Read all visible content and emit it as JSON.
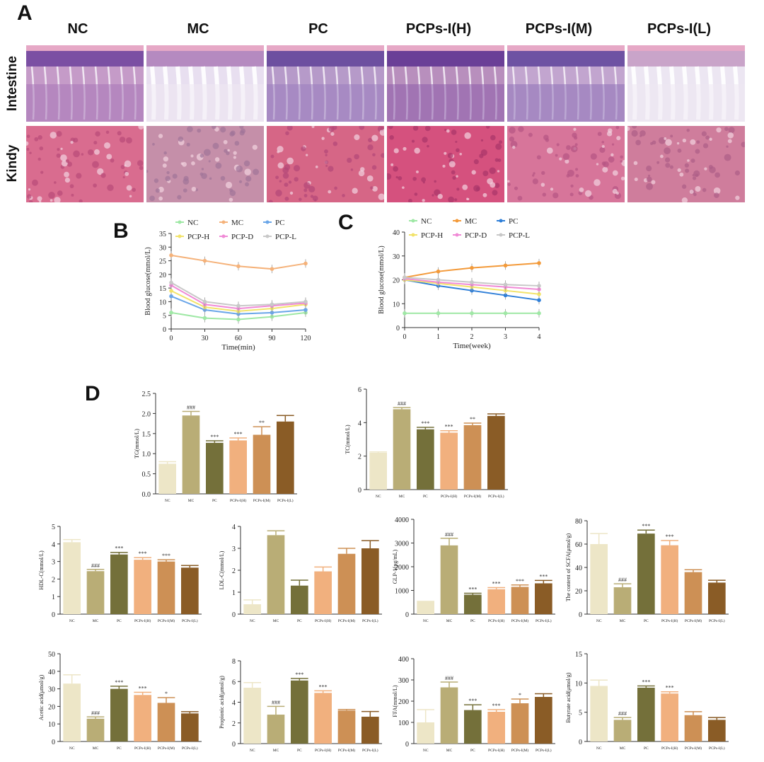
{
  "panel_letters": {
    "a": "A",
    "b": "B",
    "c": "C",
    "d": "D"
  },
  "histology": {
    "groups": [
      "NC",
      "MC",
      "PC",
      "PCPs-I(H)",
      "PCPs-I(M)",
      "PCPs-I(L)"
    ],
    "rows": [
      "Intestine",
      "Kindy"
    ]
  },
  "colors": {
    "NC": "#ede6c7",
    "MC": "#b9ad76",
    "PC": "#74703a",
    "H": "#f1b07e",
    "M": "#cd9055",
    "L": "#8a5c26",
    "lineNC": "#9fe8a5",
    "lineMC": "#f5b27a",
    "linePC": "#6aa6e8",
    "lineH": "#f2e36a",
    "lineD": "#f08ad6",
    "lineL": "#c8c8c8",
    "lineMC_C": "#f39a3a",
    "linePC_C": "#2f7fd8"
  },
  "chart_data": [
    {
      "id": "B",
      "type": "line",
      "x": [
        0,
        30,
        60,
        90,
        120
      ],
      "xlabel": "Time(min)",
      "ylabel": "Blood glucose(mmol/L)",
      "ylim": [
        0,
        35
      ],
      "yticks": [
        0,
        5,
        10,
        15,
        20,
        25,
        30,
        35
      ],
      "legend_rows": [
        [
          "NC",
          "MC",
          "PC"
        ],
        [
          "PCP-H",
          "PCP-D",
          "PCP-L"
        ]
      ],
      "series": [
        {
          "name": "NC",
          "values": [
            6,
            4,
            3.5,
            4.5,
            6
          ]
        },
        {
          "name": "MC",
          "values": [
            27,
            25,
            23,
            22,
            24
          ]
        },
        {
          "name": "PC",
          "values": [
            12,
            7,
            5.5,
            6,
            7
          ]
        },
        {
          "name": "PCP-H",
          "values": [
            14,
            8,
            6.5,
            7.5,
            9
          ]
        },
        {
          "name": "PCP-D",
          "values": [
            16,
            9,
            7.5,
            8.5,
            9.5
          ]
        },
        {
          "name": "PCP-L",
          "values": [
            17,
            10,
            8.5,
            9,
            10
          ]
        }
      ]
    },
    {
      "id": "C",
      "type": "line",
      "x": [
        0,
        1,
        2,
        3,
        4
      ],
      "xlabel": "Time(week)",
      "ylabel": "Blood glucose(mmol/L)",
      "ylim": [
        0,
        40
      ],
      "yticks": [
        0,
        10,
        20,
        30,
        40
      ],
      "legend_rows": [
        [
          "NC",
          "MC",
          "PC"
        ],
        [
          "PCP-H",
          "PCP-D",
          "PCP-L"
        ]
      ],
      "series": [
        {
          "name": "NC",
          "values": [
            6,
            6,
            6,
            6,
            6
          ]
        },
        {
          "name": "MC",
          "values": [
            21,
            23.5,
            25,
            26,
            27
          ]
        },
        {
          "name": "PC",
          "values": [
            20,
            17.5,
            15.5,
            13.5,
            11.5
          ]
        },
        {
          "name": "PCP-H",
          "values": [
            20,
            18.5,
            17,
            15.5,
            14
          ]
        },
        {
          "name": "PCP-D",
          "values": [
            20.5,
            19,
            18,
            17,
            16
          ]
        },
        {
          "name": "PCP-L",
          "values": [
            21,
            20,
            19,
            18,
            17.5
          ]
        }
      ]
    },
    {
      "id": "TG",
      "type": "bar",
      "ylabel": "TG(mmol/L)",
      "categories": [
        "NC",
        "MC",
        "PC",
        "PCPs-I(H)",
        "PCPs-I(M)",
        "PCPs-I(L)"
      ],
      "values": [
        0.75,
        1.95,
        1.27,
        1.33,
        1.47,
        1.8
      ],
      "errors": [
        0.05,
        0.1,
        0.05,
        0.06,
        0.2,
        0.15
      ],
      "marks": [
        "",
        "###",
        "***",
        "***",
        "**",
        ""
      ],
      "ylim": [
        0,
        2.5
      ],
      "yticks": [
        "0.0",
        "0.5",
        "1.0",
        "1.5",
        "2.0",
        "2.5"
      ]
    },
    {
      "id": "TC",
      "type": "bar",
      "ylabel": "TC(mmol/L)",
      "categories": [
        "NC",
        "MC",
        "PC",
        "PCPs-I(H)",
        "PCPs-I(M)",
        "PCPs-I(L)"
      ],
      "values": [
        2.2,
        4.8,
        3.6,
        3.4,
        3.85,
        4.4
      ],
      "errors": [
        0.05,
        0.1,
        0.12,
        0.12,
        0.12,
        0.12
      ],
      "marks": [
        "",
        "###",
        "***",
        "***",
        "**",
        ""
      ],
      "ylim": [
        0,
        6
      ],
      "yticks": [
        "0",
        "2",
        "4",
        "6"
      ]
    },
    {
      "id": "HDL",
      "type": "bar",
      "ylabel": "HDL-C(mmol/L)",
      "categories": [
        "NC",
        "MC",
        "PC",
        "PCPs-I(H)",
        "PCPs-I(M)",
        "PCPs-I(L)"
      ],
      "values": [
        4.1,
        2.45,
        3.4,
        3.1,
        3.0,
        2.65
      ],
      "errors": [
        0.15,
        0.1,
        0.12,
        0.12,
        0.1,
        0.12
      ],
      "marks": [
        "",
        "###",
        "***",
        "***",
        "***",
        ""
      ],
      "ylim": [
        0,
        5
      ],
      "yticks": [
        "0",
        "1",
        "2",
        "3",
        "4",
        "5"
      ]
    },
    {
      "id": "LDL",
      "type": "bar",
      "ylabel": "LDL-C(mmol/L)",
      "categories": [
        "NC",
        "MC",
        "PC",
        "PCPs-I(H)",
        "PCPs-I(M)",
        "PCPs-I(L)"
      ],
      "values": [
        0.45,
        3.6,
        1.3,
        1.95,
        2.75,
        3.0
      ],
      "errors": [
        0.2,
        0.2,
        0.25,
        0.2,
        0.25,
        0.35
      ],
      "marks": [
        "",
        "",
        "",
        "",
        "",
        ""
      ],
      "ylim": [
        0,
        4
      ],
      "yticks": [
        "0",
        "1",
        "2",
        "3",
        "4"
      ]
    },
    {
      "id": "GLP",
      "type": "bar",
      "ylabel": "GLP-1(pg/mL)",
      "categories": [
        "NC",
        "MC",
        "PC",
        "PCPs-I(H)",
        "PCPs-I(M)",
        "PCPs-I(L)"
      ],
      "values": [
        520,
        2900,
        820,
        1050,
        1150,
        1300
      ],
      "errors": [
        20,
        300,
        60,
        70,
        80,
        120
      ],
      "marks": [
        "",
        "###",
        "***",
        "***",
        "***",
        "***"
      ],
      "ylim": [
        0,
        4000
      ],
      "yticks": [
        "0",
        "1000",
        "2000",
        "3000",
        "4000"
      ]
    },
    {
      "id": "SCFA",
      "type": "bar",
      "ylabel": "The content of SCFA(μmol/g)",
      "categories": [
        "NC",
        "MC",
        "PC",
        "PCPs-I(H)",
        "PCPs-I(M)",
        "PCPs-I(L)"
      ],
      "values": [
        60,
        23,
        69,
        59,
        36,
        27
      ],
      "errors": [
        9,
        3,
        3,
        4,
        2,
        2
      ],
      "marks": [
        "",
        "###",
        "***",
        "***",
        "",
        ""
      ],
      "ylim": [
        0,
        80
      ],
      "yticks": [
        "0",
        "20",
        "40",
        "60",
        "80"
      ]
    },
    {
      "id": "AA",
      "type": "bar",
      "ylabel": "Acetic acid(μmol/g)",
      "categories": [
        "NC",
        "MC",
        "PC",
        "PCPs-I(H)",
        "PCPs-I(M)",
        "PCPs-I(L)"
      ],
      "values": [
        33,
        13,
        30,
        26.5,
        22,
        16
      ],
      "errors": [
        5,
        1,
        1.5,
        1.5,
        3,
        1
      ],
      "marks": [
        "",
        "###",
        "***",
        "***",
        "*",
        ""
      ],
      "ylim": [
        0,
        50
      ],
      "yticks": [
        "0",
        "10",
        "20",
        "30",
        "40",
        "50"
      ]
    },
    {
      "id": "PA",
      "type": "bar",
      "ylabel": "Propionic acid(μmol/g)",
      "categories": [
        "NC",
        "MC",
        "PC",
        "PCPs-I(H)",
        "PCPs-I(M)",
        "PCPs-I(L)"
      ],
      "values": [
        5.4,
        2.8,
        6.1,
        4.9,
        3.2,
        2.6
      ],
      "errors": [
        0.5,
        0.8,
        0.2,
        0.2,
        0.1,
        0.5
      ],
      "marks": [
        "",
        "###",
        "***",
        "***",
        "",
        ""
      ],
      "ylim": [
        0,
        8
      ],
      "yticks": [
        "0",
        "2",
        "4",
        "6",
        "8"
      ]
    },
    {
      "id": "FFA",
      "type": "bar",
      "ylabel": "FFA(mmol/L)",
      "categories": [
        "NC",
        "MC",
        "PC",
        "PCPs-I(H)",
        "PCPs-I(M)",
        "PCPs-I(L)"
      ],
      "values": [
        100,
        265,
        158,
        150,
        190,
        220
      ],
      "errors": [
        60,
        25,
        25,
        10,
        20,
        15
      ],
      "marks": [
        "",
        "###",
        "***",
        "***",
        "*",
        ""
      ],
      "ylim": [
        0,
        400
      ],
      "yticks": [
        "0",
        "100",
        "200",
        "300",
        "400"
      ]
    },
    {
      "id": "BA",
      "type": "bar",
      "ylabel": "Butyrate acid(μmol/g)",
      "categories": [
        "NC",
        "MC",
        "PC",
        "PCPs-I(H)",
        "PCPs-I(M)",
        "PCPs-I(L)"
      ],
      "values": [
        9.5,
        3.7,
        9.2,
        8.2,
        4.5,
        3.7
      ],
      "errors": [
        1.0,
        0.4,
        0.3,
        0.3,
        0.6,
        0.4
      ],
      "marks": [
        "",
        "###",
        "***",
        "***",
        "",
        ""
      ],
      "ylim": [
        0,
        15
      ],
      "yticks": [
        "0",
        "5",
        "10",
        "15"
      ]
    }
  ]
}
